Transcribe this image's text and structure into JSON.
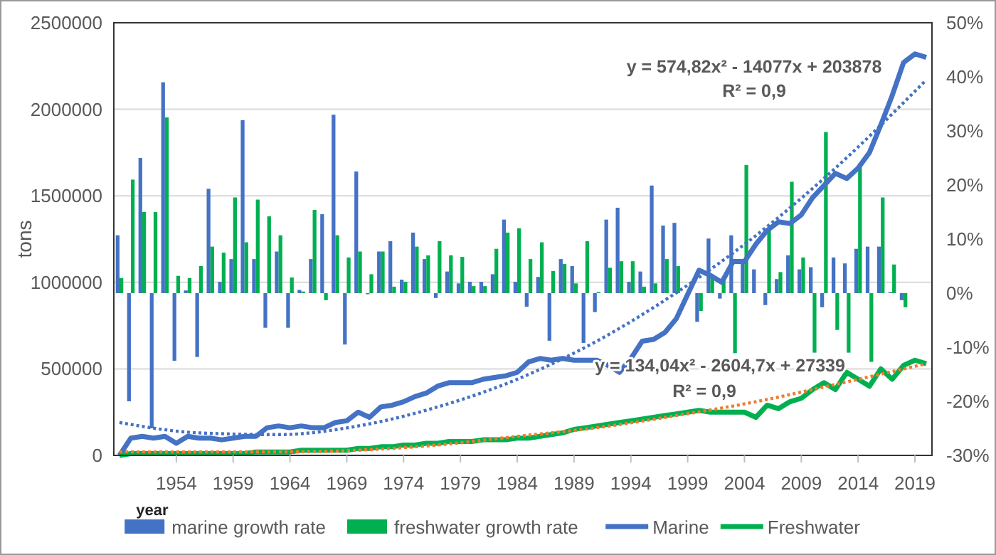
{
  "chart_data": {
    "type": "bar",
    "xlabel": "year",
    "ylabel": "tons",
    "x": [
      1949,
      1950,
      1951,
      1952,
      1953,
      1954,
      1955,
      1956,
      1957,
      1958,
      1959,
      1960,
      1961,
      1962,
      1963,
      1964,
      1965,
      1966,
      1967,
      1968,
      1969,
      1970,
      1971,
      1972,
      1973,
      1974,
      1975,
      1976,
      1977,
      1978,
      1979,
      1980,
      1981,
      1982,
      1983,
      1984,
      1985,
      1986,
      1987,
      1988,
      1989,
      1990,
      1991,
      1992,
      1993,
      1994,
      1995,
      1996,
      1997,
      1998,
      1999,
      2000,
      2001,
      2002,
      2003,
      2004,
      2005,
      2006,
      2007,
      2008,
      2009,
      2010,
      2011,
      2012,
      2013,
      2014,
      2015,
      2016,
      2017,
      2018,
      2019,
      2020
    ],
    "xlim": [
      1948.5,
      2020.5
    ],
    "xticks": [
      1954,
      1959,
      1964,
      1969,
      1974,
      1979,
      1984,
      1989,
      1994,
      1999,
      2004,
      2009,
      2014,
      2019
    ],
    "ylim": [
      0,
      2500000
    ],
    "yticks": [
      0,
      500000,
      1000000,
      1500000,
      2000000,
      2500000
    ],
    "y2lim": [
      -30,
      50
    ],
    "y2ticks": [
      {
        "value": -30,
        "label": "-30%"
      },
      {
        "value": -20,
        "label": "-20%"
      },
      {
        "value": -10,
        "label": "-10%"
      },
      {
        "value": 0,
        "label": "0%"
      },
      {
        "value": 10,
        "label": "10%"
      },
      {
        "value": 20,
        "label": "20%"
      },
      {
        "value": 30,
        "label": "30%"
      },
      {
        "value": 40,
        "label": "40%"
      },
      {
        "value": 50,
        "label": "50%"
      }
    ],
    "grid": "y",
    "legend": "bottom",
    "series": [
      {
        "name": "marine growth rate",
        "axis": "y2",
        "color": "#4472c4",
        "values": [
          10.7,
          -20,
          25,
          -25,
          39,
          -12.5,
          0.5,
          -11.8,
          19.3,
          2.1,
          6.3,
          32,
          6.3,
          -6.4,
          7.7,
          -6.4,
          0.6,
          6.3,
          14.6,
          33,
          -9.5,
          22.5,
          -0.2,
          7.7,
          9.6,
          2.5,
          11.2,
          6.3,
          -0.9,
          4,
          1.8,
          2.1,
          2.1,
          3.5,
          13.6,
          2.1,
          -2.5,
          3,
          -8.8,
          6.3,
          5,
          -9.2,
          -3.5,
          13.6,
          15.8,
          2.1,
          4,
          19.9,
          12.5,
          13,
          null,
          -5.3,
          10.1,
          -1,
          10.7,
          6,
          4.4,
          -2.2,
          2.6,
          7,
          4.4,
          4.8,
          -2.6,
          6.6,
          5.5,
          8.2,
          8.6,
          8.6,
          0.2,
          -1.3,
          null,
          null
        ]
      },
      {
        "name": "freshwater growth rate",
        "axis": "y2",
        "color": "#00b050",
        "values": [
          2.8,
          21,
          15,
          15,
          32.5,
          3.2,
          2.8,
          5,
          8.6,
          7.5,
          17.7,
          9.4,
          17.3,
          14.2,
          10.7,
          2.9,
          0.3,
          15.4,
          -1.3,
          10.7,
          6.6,
          7.7,
          3.5,
          7.7,
          1.2,
          2.1,
          8.6,
          7,
          9.6,
          7,
          6.7,
          1.3,
          1.3,
          8.2,
          11.2,
          12,
          6.3,
          9.4,
          4.1,
          5.4,
          1.8,
          9.6,
          0.2,
          4.7,
          5.9,
          5.9,
          1.2,
          1.8,
          6.3,
          5,
          null,
          -3.3,
          2.8,
          2.5,
          -11.1,
          23.7,
          null,
          11.6,
          3.9,
          20.6,
          6.6,
          -11,
          29.8,
          -6.8,
          -11,
          24,
          -12.7,
          17.7,
          5.3,
          -2.6,
          null,
          null
        ]
      },
      {
        "name": "Marine",
        "type": "line",
        "color": "#4472c4",
        "values": [
          0,
          100000,
          110000,
          100000,
          110000,
          70000,
          110000,
          100000,
          100000,
          90000,
          100000,
          110000,
          110000,
          160000,
          170000,
          160000,
          170000,
          160000,
          160000,
          190000,
          200000,
          250000,
          220000,
          280000,
          290000,
          310000,
          340000,
          360000,
          400000,
          420000,
          420000,
          420000,
          440000,
          450000,
          460000,
          480000,
          540000,
          560000,
          550000,
          560000,
          550000,
          550000,
          550000,
          520000,
          480000,
          560000,
          660000,
          670000,
          710000,
          790000,
          930000,
          1070000,
          1040000,
          1000000,
          1120000,
          1120000,
          1220000,
          1300000,
          1350000,
          1340000,
          1390000,
          1490000,
          1560000,
          1630000,
          1600000,
          1660000,
          1750000,
          1910000,
          2080000,
          2270000,
          2320000,
          2300000
        ]
      },
      {
        "name": "Freshwater",
        "type": "line",
        "color": "#00b050",
        "values": [
          0,
          10000,
          10000,
          10000,
          10000,
          10000,
          10000,
          10000,
          10000,
          10000,
          10000,
          10000,
          20000,
          20000,
          20000,
          20000,
          30000,
          30000,
          30000,
          30000,
          30000,
          40000,
          40000,
          50000,
          50000,
          60000,
          60000,
          70000,
          70000,
          80000,
          80000,
          80000,
          90000,
          90000,
          90000,
          100000,
          100000,
          110000,
          120000,
          130000,
          150000,
          160000,
          170000,
          180000,
          190000,
          200000,
          210000,
          220000,
          230000,
          240000,
          250000,
          260000,
          250000,
          250000,
          250000,
          250000,
          220000,
          290000,
          270000,
          310000,
          330000,
          380000,
          420000,
          380000,
          480000,
          440000,
          400000,
          500000,
          440000,
          520000,
          550000,
          530000
        ]
      },
      {
        "type": "line",
        "line_style": "dotted",
        "color": "#4472c4",
        "x": [
          1949,
          1956,
          1963,
          1970,
          1977,
          1984,
          1991,
          1998,
          2005,
          2012,
          2020
        ],
        "values": [
          190000,
          130000,
          120000,
          170000,
          280000,
          440000,
          660000,
          940000,
          1270000,
          1660000,
          2170000
        ]
      },
      {
        "type": "line",
        "line_style": "dotted",
        "color": "#ed7d31",
        "x": [
          1949,
          1956,
          1963,
          1970,
          1977,
          1984,
          1991,
          1998,
          2005,
          2012,
          2020
        ],
        "values": [
          20000,
          20000,
          20000,
          30000,
          60000,
          110000,
          160000,
          230000,
          310000,
          410000,
          530000
        ]
      }
    ],
    "annotations": [
      "y = 574,82x² - 14077x + 203878",
      "R² = 0,9",
      "y = 134,04x² - 2604,7x + 27339",
      "R² = 0,9"
    ]
  }
}
